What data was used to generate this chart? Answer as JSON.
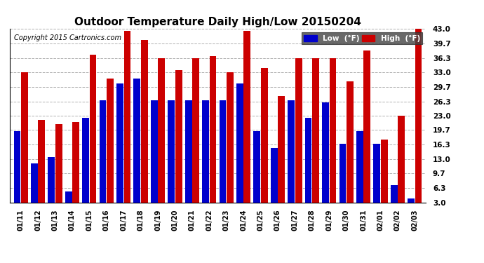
{
  "title": "Outdoor Temperature Daily High/Low 20150204",
  "copyright": "Copyright 2015 Cartronics.com",
  "legend_low": "Low  (°F)",
  "legend_high": "High  (°F)",
  "dates": [
    "01/11",
    "01/12",
    "01/13",
    "01/14",
    "01/15",
    "01/16",
    "01/17",
    "01/18",
    "01/19",
    "01/20",
    "01/21",
    "01/22",
    "01/23",
    "01/24",
    "01/25",
    "01/26",
    "01/27",
    "01/28",
    "01/29",
    "01/30",
    "01/31",
    "02/01",
    "02/02",
    "02/03"
  ],
  "highs": [
    33.0,
    22.0,
    21.0,
    21.5,
    37.0,
    31.5,
    42.5,
    40.5,
    36.3,
    33.5,
    36.3,
    36.7,
    33.0,
    42.5,
    34.0,
    27.5,
    36.3,
    36.3,
    36.3,
    31.0,
    38.0,
    17.5,
    23.0,
    43.0
  ],
  "lows": [
    19.5,
    12.0,
    13.5,
    5.5,
    22.5,
    26.5,
    30.5,
    31.5,
    26.5,
    26.5,
    26.5,
    26.5,
    26.5,
    30.5,
    19.5,
    15.5,
    26.5,
    22.5,
    26.0,
    16.5,
    19.5,
    16.5,
    7.0,
    4.0
  ],
  "ylim": [
    3.0,
    43.0
  ],
  "yticks": [
    3.0,
    6.3,
    9.7,
    13.0,
    16.3,
    19.7,
    23.0,
    26.3,
    29.7,
    33.0,
    36.3,
    39.7,
    43.0
  ],
  "bg_color": "#ffffff",
  "plot_bg_color": "#ffffff",
  "bar_color_low": "#0000cc",
  "bar_color_high": "#cc0000",
  "grid_color": "#b0b0b0",
  "title_fontsize": 11,
  "copyright_fontsize": 7
}
